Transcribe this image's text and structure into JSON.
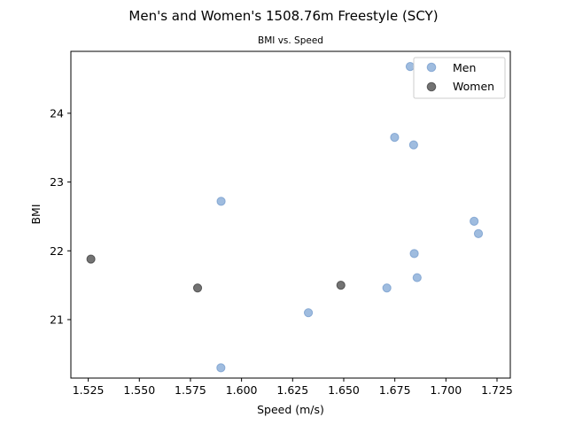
{
  "chart_data": {
    "type": "scatter",
    "title": "Men's and Women's 1508.76m Freestyle (SCY)",
    "subtitle": "BMI vs. Speed",
    "xlabel": "Speed (m/s)",
    "ylabel": "BMI",
    "xlim": [
      1.5165,
      1.7315
    ],
    "ylim": [
      20.15,
      24.9
    ],
    "xticks": [
      1.525,
      1.55,
      1.575,
      1.6,
      1.625,
      1.65,
      1.675,
      1.7,
      1.725
    ],
    "xtick_labels": [
      "1.525",
      "1.550",
      "1.575",
      "1.600",
      "1.625",
      "1.650",
      "1.675",
      "1.700",
      "1.725"
    ],
    "yticks": [
      21,
      22,
      23,
      24
    ],
    "ytick_labels": [
      "21",
      "22",
      "23",
      "24"
    ],
    "grid": false,
    "legend_position": "upper right",
    "series": [
      {
        "name": "Men",
        "color": "#7fa6d4",
        "points": [
          {
            "x": 1.6825,
            "y": 24.68
          },
          {
            "x": 1.6749,
            "y": 23.65
          },
          {
            "x": 1.6842,
            "y": 23.54
          },
          {
            "x": 1.59,
            "y": 22.72
          },
          {
            "x": 1.7138,
            "y": 22.43
          },
          {
            "x": 1.7159,
            "y": 22.25
          },
          {
            "x": 1.6845,
            "y": 21.96
          },
          {
            "x": 1.6859,
            "y": 21.61
          },
          {
            "x": 1.6711,
            "y": 21.46
          },
          {
            "x": 1.6327,
            "y": 21.1
          },
          {
            "x": 1.5899,
            "y": 20.3
          }
        ]
      },
      {
        "name": "Women",
        "color": "#444444",
        "points": [
          {
            "x": 1.5263,
            "y": 21.88
          },
          {
            "x": 1.5785,
            "y": 21.46
          },
          {
            "x": 1.6486,
            "y": 21.5
          }
        ]
      }
    ]
  }
}
